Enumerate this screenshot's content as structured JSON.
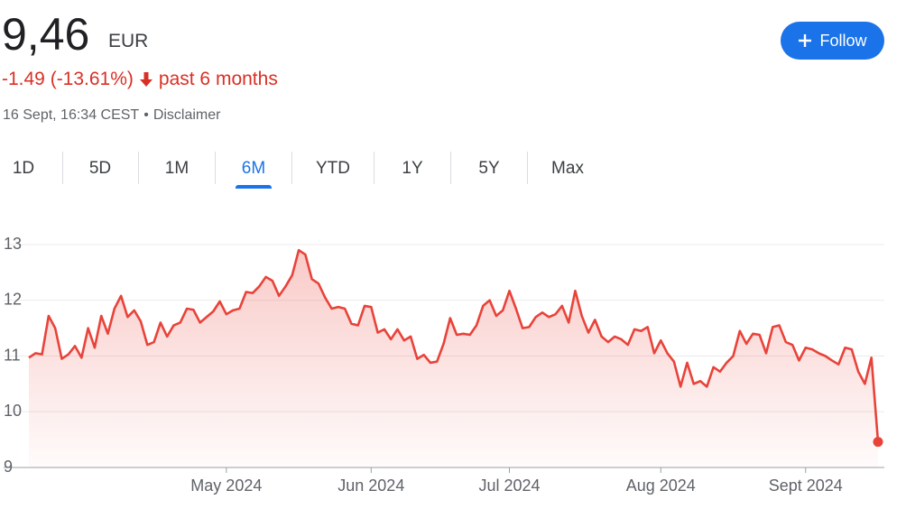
{
  "header": {
    "price": "9,46",
    "currency": "EUR",
    "change": "-1.49 (-13.61%)",
    "period": "past 6 months",
    "timestamp": "16 Sept, 16:34 CEST",
    "separator": "•",
    "disclaimer": "Disclaimer",
    "follow": "Follow"
  },
  "tabs": {
    "labels": [
      "1D",
      "5D",
      "1M",
      "6M",
      "YTD",
      "1Y",
      "5Y",
      "Max"
    ],
    "selected": 3
  },
  "chart_data": {
    "type": "line",
    "color": "#e8433a",
    "grid": true,
    "ylim": [
      9,
      13
    ],
    "yticks": [
      9,
      10,
      11,
      12,
      13
    ],
    "categories": [
      null,
      null,
      null,
      null,
      null,
      null,
      null,
      null,
      null,
      null,
      null,
      null,
      null,
      null,
      null,
      null,
      null,
      null,
      null,
      null,
      null,
      null,
      null,
      null,
      null,
      null,
      null,
      null,
      null,
      null,
      "May 2024",
      null,
      null,
      null,
      null,
      null,
      null,
      null,
      null,
      null,
      null,
      null,
      null,
      null,
      null,
      null,
      null,
      null,
      null,
      null,
      null,
      null,
      "Jun 2024",
      null,
      null,
      null,
      null,
      null,
      null,
      null,
      null,
      null,
      null,
      null,
      null,
      null,
      null,
      null,
      null,
      null,
      null,
      null,
      null,
      "Jul 2024",
      null,
      null,
      null,
      null,
      null,
      null,
      null,
      null,
      null,
      null,
      null,
      null,
      null,
      null,
      null,
      null,
      null,
      null,
      null,
      null,
      null,
      null,
      "Aug 2024",
      null,
      null,
      null,
      null,
      null,
      null,
      null,
      null,
      null,
      null,
      null,
      null,
      null,
      null,
      null,
      null,
      null,
      null,
      null,
      null,
      null,
      "Sept 2024",
      null,
      null,
      null,
      null,
      null,
      null,
      null,
      null,
      null,
      null,
      null
    ],
    "values": [
      10.97,
      11.05,
      11.03,
      11.72,
      11.5,
      10.95,
      11.03,
      11.18,
      10.97,
      11.5,
      11.15,
      11.72,
      11.4,
      11.85,
      12.08,
      11.7,
      11.82,
      11.62,
      11.2,
      11.25,
      11.6,
      11.35,
      11.55,
      11.6,
      11.85,
      11.83,
      11.6,
      11.7,
      11.8,
      11.98,
      11.75,
      11.82,
      11.85,
      12.15,
      12.13,
      12.25,
      12.42,
      12.35,
      12.08,
      12.25,
      12.45,
      12.9,
      12.82,
      12.38,
      12.3,
      12.05,
      11.85,
      11.88,
      11.85,
      11.58,
      11.55,
      11.9,
      11.88,
      11.42,
      11.48,
      11.3,
      11.48,
      11.28,
      11.35,
      10.95,
      11.02,
      10.88,
      10.9,
      11.22,
      11.68,
      11.38,
      11.4,
      11.38,
      11.55,
      11.9,
      12.0,
      11.72,
      11.82,
      12.17,
      11.85,
      11.5,
      11.52,
      11.7,
      11.78,
      11.7,
      11.75,
      11.9,
      11.6,
      12.17,
      11.72,
      11.42,
      11.65,
      11.35,
      11.25,
      11.35,
      11.3,
      11.2,
      11.48,
      11.45,
      11.52,
      11.05,
      11.28,
      11.05,
      10.9,
      10.45,
      10.88,
      10.5,
      10.55,
      10.45,
      10.8,
      10.72,
      10.88,
      11.0,
      11.45,
      11.22,
      11.4,
      11.38,
      11.05,
      11.52,
      11.55,
      11.25,
      11.2,
      10.92,
      11.15,
      11.12,
      11.05,
      11.0,
      10.92,
      10.85,
      11.15,
      11.12,
      10.72,
      10.5,
      10.97,
      9.46
    ]
  }
}
